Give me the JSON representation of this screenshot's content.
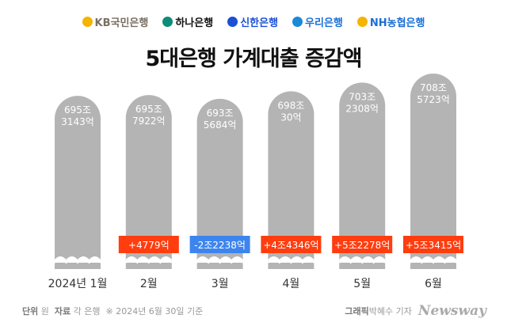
{
  "logos": [
    {
      "name": "KB국민은행",
      "color": "#7a6e62",
      "mark": "#f5b400"
    },
    {
      "name": "하나은행",
      "color": "#111111",
      "mark": "#0d8c7a"
    },
    {
      "name": "신한은행",
      "color": "#1a4fd6",
      "mark": "#1a4fd6"
    },
    {
      "name": "우리은행",
      "color": "#1a6fd6",
      "mark": "#1a8ad6"
    },
    {
      "name": "NH농협은행",
      "color": "#1a6fd6",
      "mark": "#f5b400"
    }
  ],
  "title": "5대은행 가계대출 증감액",
  "chart_data": {
    "type": "bar",
    "title": "5대은행 가계대출 증감액",
    "categories": [
      "2024년 1월",
      "2월",
      "3월",
      "4월",
      "5월",
      "6월"
    ],
    "values": [
      695.3143,
      695.7922,
      693.5684,
      698.003,
      703.2308,
      708.5723
    ],
    "value_labels": [
      [
        "695조",
        "3143억"
      ],
      [
        "695조",
        "7922억"
      ],
      [
        "693조",
        "5684억"
      ],
      [
        "698조",
        "30억"
      ],
      [
        "703조",
        "2308억"
      ],
      [
        "708조",
        "5723억"
      ]
    ],
    "changes": [
      null,
      "+4779억",
      "-2조2238억",
      "+4조4346억",
      "+5조2278억",
      "+5조3415억"
    ],
    "change_colors": {
      "up": "#ff3d0f",
      "down": "#3d85ee"
    },
    "bar_color": "#b4b4b4",
    "ylim": [
      592,
      710
    ],
    "axis_break": true,
    "unit": "원"
  },
  "footer": {
    "unit_label": "단위",
    "unit": "원",
    "source_label": "자료",
    "source": "각 은행",
    "note": "※ 2024년 6월 30일 기준",
    "graphic_label": "그래픽",
    "author": "박혜수 기자",
    "brand": "Newsway"
  }
}
